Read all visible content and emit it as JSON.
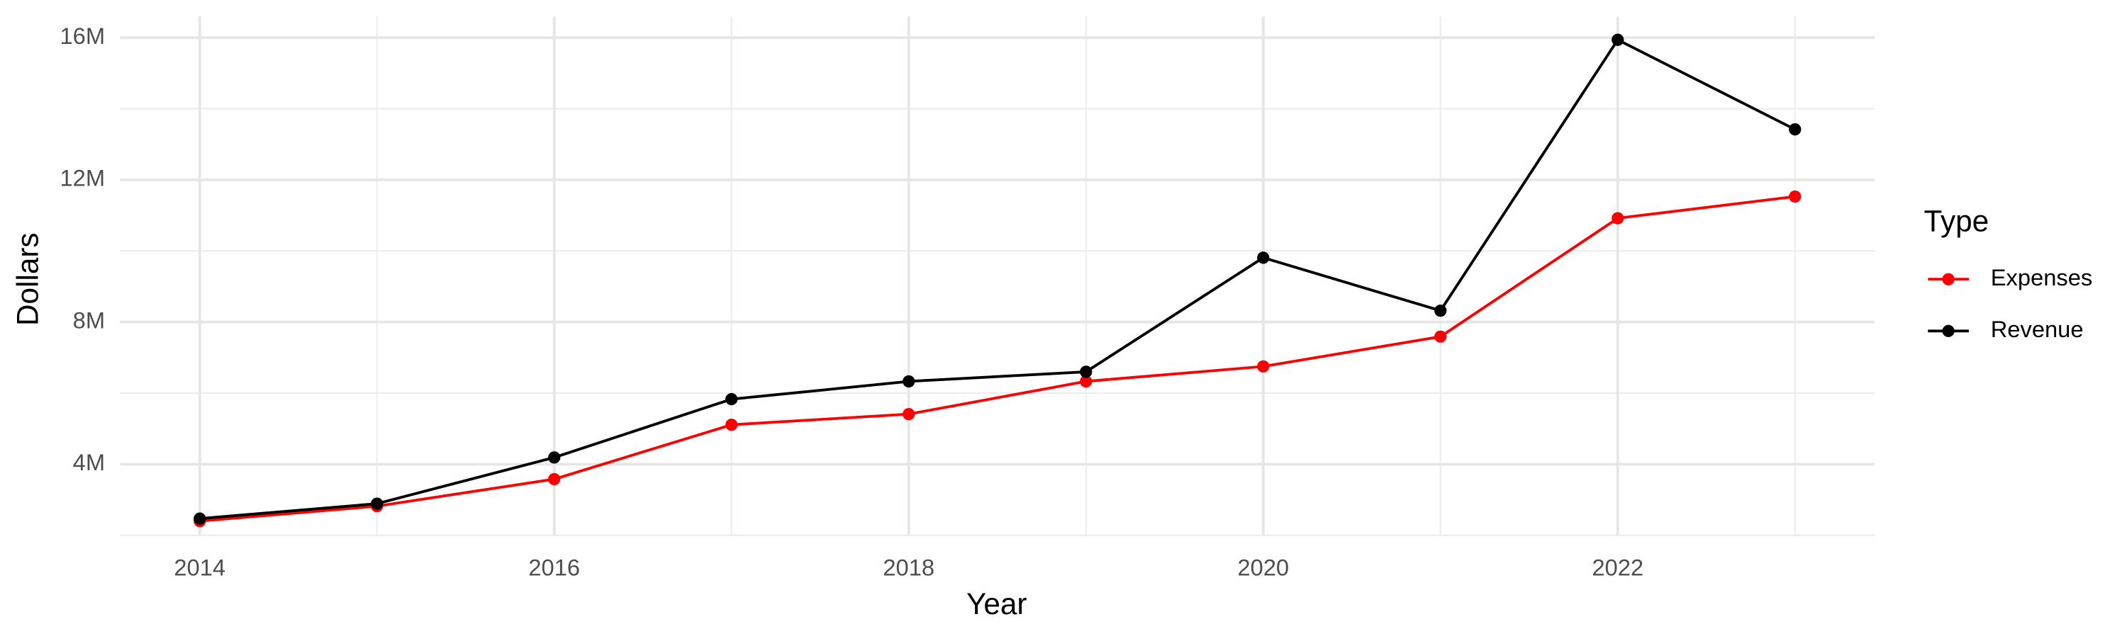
{
  "chart_data": {
    "type": "line",
    "x_label": "Year",
    "y_label": "Dollars",
    "legend_title": "Type",
    "legend_position": "right",
    "grid": true,
    "x": [
      2014,
      2015,
      2016,
      2017,
      2018,
      2019,
      2020,
      2021,
      2022,
      2023
    ],
    "xlim": [
      2013.55,
      2023.45
    ],
    "xticks": [
      2014,
      2016,
      2018,
      2020,
      2022
    ],
    "ylim": [
      2000000,
      16600000
    ],
    "yticks": [
      {
        "value": 4000000,
        "label": "4M"
      },
      {
        "value": 8000000,
        "label": "8M"
      },
      {
        "value": 12000000,
        "label": "12M"
      },
      {
        "value": 16000000,
        "label": "16M"
      }
    ],
    "series": [
      {
        "name": "Expenses",
        "color": "#ff0000",
        "values": [
          2400000,
          2820000,
          3580000,
          5110000,
          5410000,
          6330000,
          6750000,
          7590000,
          10920000,
          11530000
        ]
      },
      {
        "name": "Revenue",
        "color": "#000000",
        "values": [
          2470000,
          2890000,
          4190000,
          5830000,
          6330000,
          6600000,
          9810000,
          8320000,
          15940000,
          13420000
        ]
      }
    ]
  }
}
